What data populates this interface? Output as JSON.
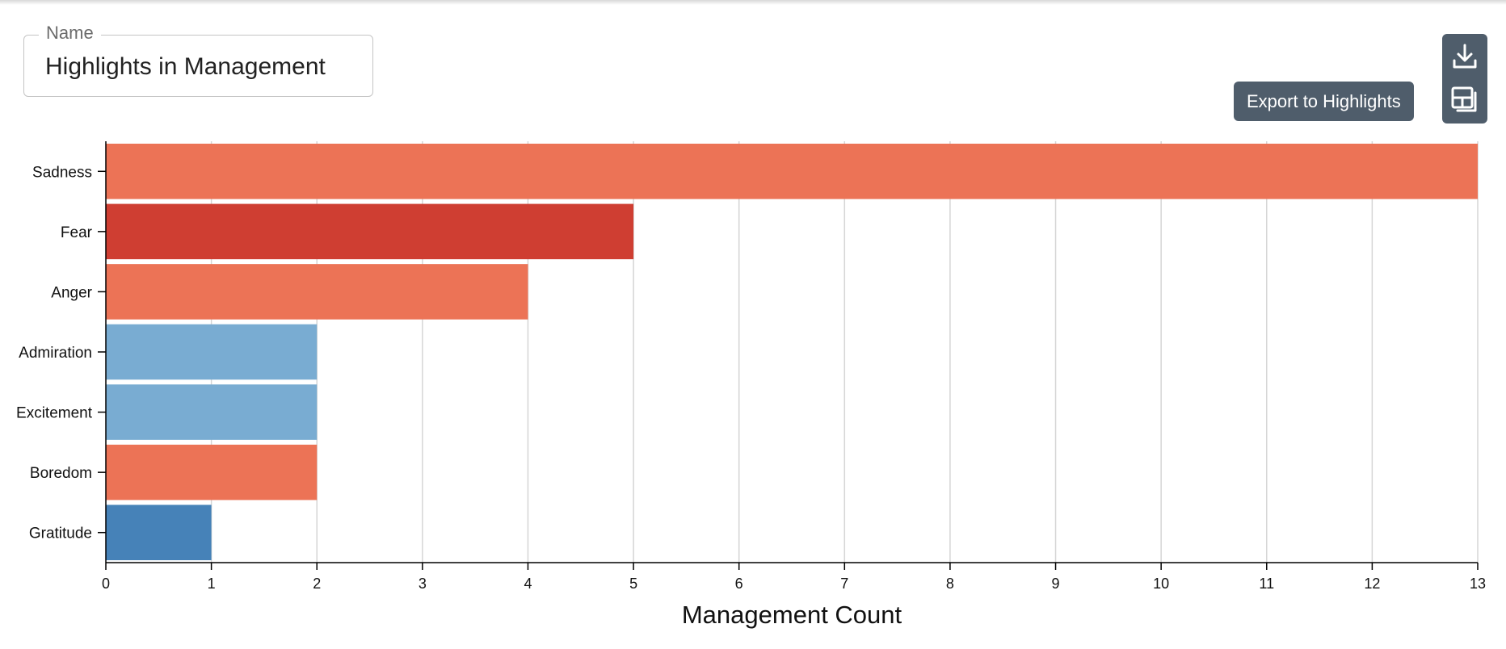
{
  "name_field": {
    "legend": "Name",
    "value": "Highlights in Management"
  },
  "toolbar": {
    "download_icon": "download-icon",
    "export_icon": "export-layout-icon",
    "tooltip": "Export to Highlights"
  },
  "chart_data": {
    "type": "bar",
    "orientation": "horizontal",
    "categories": [
      "Sadness",
      "Fear",
      "Anger",
      "Admiration",
      "Excitement",
      "Boredom",
      "Gratitude"
    ],
    "values": [
      13,
      5,
      4,
      2,
      2,
      2,
      1
    ],
    "colors": [
      "#ec7356",
      "#cf3e32",
      "#ec7356",
      "#79acd2",
      "#79acd2",
      "#ec7356",
      "#4682b8"
    ],
    "xlabel": "Management Count",
    "ylabel": "",
    "xlim": [
      0,
      13
    ],
    "xticks": [
      0,
      1,
      2,
      3,
      4,
      5,
      6,
      7,
      8,
      9,
      10,
      11,
      12,
      13
    ],
    "grid": true
  }
}
